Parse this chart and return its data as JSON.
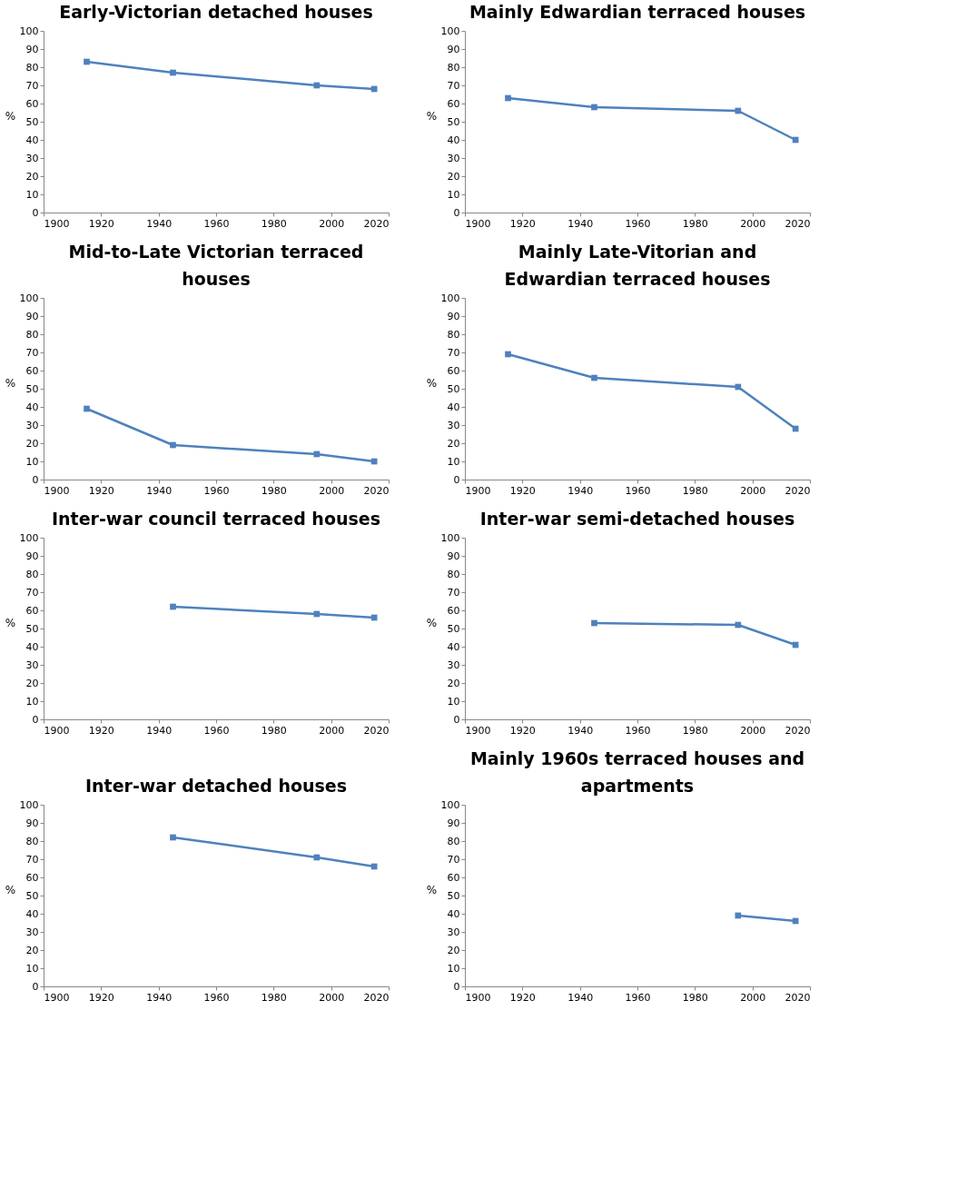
{
  "chart_data": [
    {
      "type": "line",
      "title": "Early-Victorian  detached houses",
      "ylabel": "%",
      "x": [
        1915,
        1945,
        1995,
        2015
      ],
      "values": [
        83,
        77,
        70,
        68
      ],
      "color": "#4f81bd",
      "xlim": [
        1900,
        2020
      ],
      "xticks": [
        1900,
        1920,
        1940,
        1960,
        1980,
        2000,
        2020
      ],
      "ylim": [
        0,
        100
      ],
      "yticks": [
        0,
        10,
        20,
        30,
        40,
        50,
        60,
        70,
        80,
        90,
        100
      ],
      "marker": "square",
      "line_style": "solid",
      "grid": false
    },
    {
      "type": "line",
      "title": "Mainly Edwardian  terraced houses",
      "ylabel": "%",
      "x": [
        1915,
        1945,
        1995,
        2015
      ],
      "values": [
        63,
        58,
        56,
        40
      ],
      "color": "#4f81bd",
      "xlim": [
        1900,
        2020
      ],
      "xticks": [
        1900,
        1920,
        1940,
        1960,
        1980,
        2000,
        2020
      ],
      "ylim": [
        0,
        100
      ],
      "yticks": [
        0,
        10,
        20,
        30,
        40,
        50,
        60,
        70,
        80,
        90,
        100
      ],
      "marker": "square",
      "line_style": "solid",
      "grid": false
    },
    {
      "type": "line",
      "title": "Mid-to-Late Victorian  terraced houses",
      "ylabel": "%",
      "x": [
        1915,
        1945,
        1995,
        2015
      ],
      "values": [
        39,
        19,
        14,
        10
      ],
      "color": "#4f81bd",
      "xlim": [
        1900,
        2020
      ],
      "xticks": [
        1900,
        1920,
        1940,
        1960,
        1980,
        2000,
        2020
      ],
      "ylim": [
        0,
        100
      ],
      "yticks": [
        0,
        10,
        20,
        30,
        40,
        50,
        60,
        70,
        80,
        90,
        100
      ],
      "marker": "square",
      "line_style": "solid",
      "grid": false
    },
    {
      "type": "line",
      "title": "Mainly Late-Vitorian  and Edwardian terraced houses",
      "ylabel": "%",
      "x": [
        1915,
        1945,
        1995,
        2015
      ],
      "values": [
        69,
        56,
        51,
        28
      ],
      "color": "#4f81bd",
      "xlim": [
        1900,
        2020
      ],
      "xticks": [
        1900,
        1920,
        1940,
        1960,
        1980,
        2000,
        2020
      ],
      "ylim": [
        0,
        100
      ],
      "yticks": [
        0,
        10,
        20,
        30,
        40,
        50,
        60,
        70,
        80,
        90,
        100
      ],
      "marker": "square",
      "line_style": "solid",
      "grid": false
    },
    {
      "type": "line",
      "title": "Inter-war council terraced houses",
      "ylabel": "%",
      "x": [
        1945,
        1995,
        2015
      ],
      "values": [
        62,
        58,
        56
      ],
      "color": "#4f81bd",
      "xlim": [
        1900,
        2020
      ],
      "xticks": [
        1900,
        1920,
        1940,
        1960,
        1980,
        2000,
        2020
      ],
      "ylim": [
        0,
        100
      ],
      "yticks": [
        0,
        10,
        20,
        30,
        40,
        50,
        60,
        70,
        80,
        90,
        100
      ],
      "marker": "square",
      "line_style": "solid",
      "grid": false
    },
    {
      "type": "line",
      "title": "Inter-war semi-detached  houses",
      "ylabel": "%",
      "x": [
        1945,
        1995,
        2015
      ],
      "values": [
        53,
        52,
        41
      ],
      "color": "#4f81bd",
      "xlim": [
        1900,
        2020
      ],
      "xticks": [
        1900,
        1920,
        1940,
        1960,
        1980,
        2000,
        2020
      ],
      "ylim": [
        0,
        100
      ],
      "yticks": [
        0,
        10,
        20,
        30,
        40,
        50,
        60,
        70,
        80,
        90,
        100
      ],
      "marker": "square",
      "line_style": "solid",
      "grid": false
    },
    {
      "type": "line",
      "title": "Inter-war detached houses",
      "ylabel": "%",
      "x": [
        1945,
        1995,
        2015
      ],
      "values": [
        82,
        71,
        66
      ],
      "color": "#4f81bd",
      "xlim": [
        1900,
        2020
      ],
      "xticks": [
        1900,
        1920,
        1940,
        1960,
        1980,
        2000,
        2020
      ],
      "ylim": [
        0,
        100
      ],
      "yticks": [
        0,
        10,
        20,
        30,
        40,
        50,
        60,
        70,
        80,
        90,
        100
      ],
      "marker": "square",
      "line_style": "solid",
      "grid": false
    },
    {
      "type": "line",
      "title": "Mainly 1960s terraced houses and apartments",
      "ylabel": "%",
      "x": [
        1995,
        2015
      ],
      "values": [
        39,
        36
      ],
      "color": "#4f81bd",
      "xlim": [
        1900,
        2020
      ],
      "xticks": [
        1900,
        1920,
        1940,
        1960,
        1980,
        2000,
        2020
      ],
      "ylim": [
        0,
        100
      ],
      "yticks": [
        0,
        10,
        20,
        30,
        40,
        50,
        60,
        70,
        80,
        90,
        100
      ],
      "marker": "square",
      "line_style": "solid",
      "grid": false
    }
  ]
}
